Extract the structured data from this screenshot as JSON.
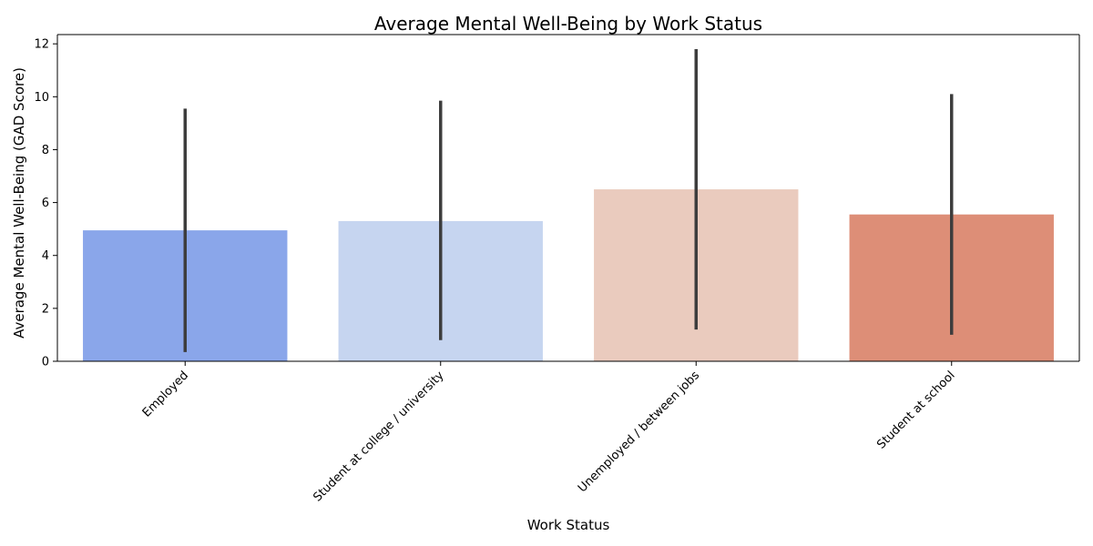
{
  "chart_data": {
    "type": "bar",
    "title": "Average Mental Well-Being by Work Status",
    "xlabel": "Work Status",
    "ylabel": "Average Mental Well-Being (GAD Score)",
    "categories": [
      "Employed",
      "Student at college / university",
      "Unemployed / between jobs",
      "Student at school"
    ],
    "values": [
      4.95,
      5.3,
      6.5,
      5.55
    ],
    "error_low": [
      0.35,
      0.8,
      1.2,
      1.0
    ],
    "error_high": [
      9.55,
      9.85,
      11.8,
      10.1
    ],
    "colors": [
      "#8aa6ea",
      "#c6d5f0",
      "#eacbbe",
      "#dd8e77"
    ],
    "error_color": "#3d3d3d",
    "ylim": [
      0,
      12.35
    ],
    "yticks": [
      0,
      2,
      4,
      6,
      8,
      10,
      12
    ],
    "grid": false,
    "legend": "none"
  }
}
